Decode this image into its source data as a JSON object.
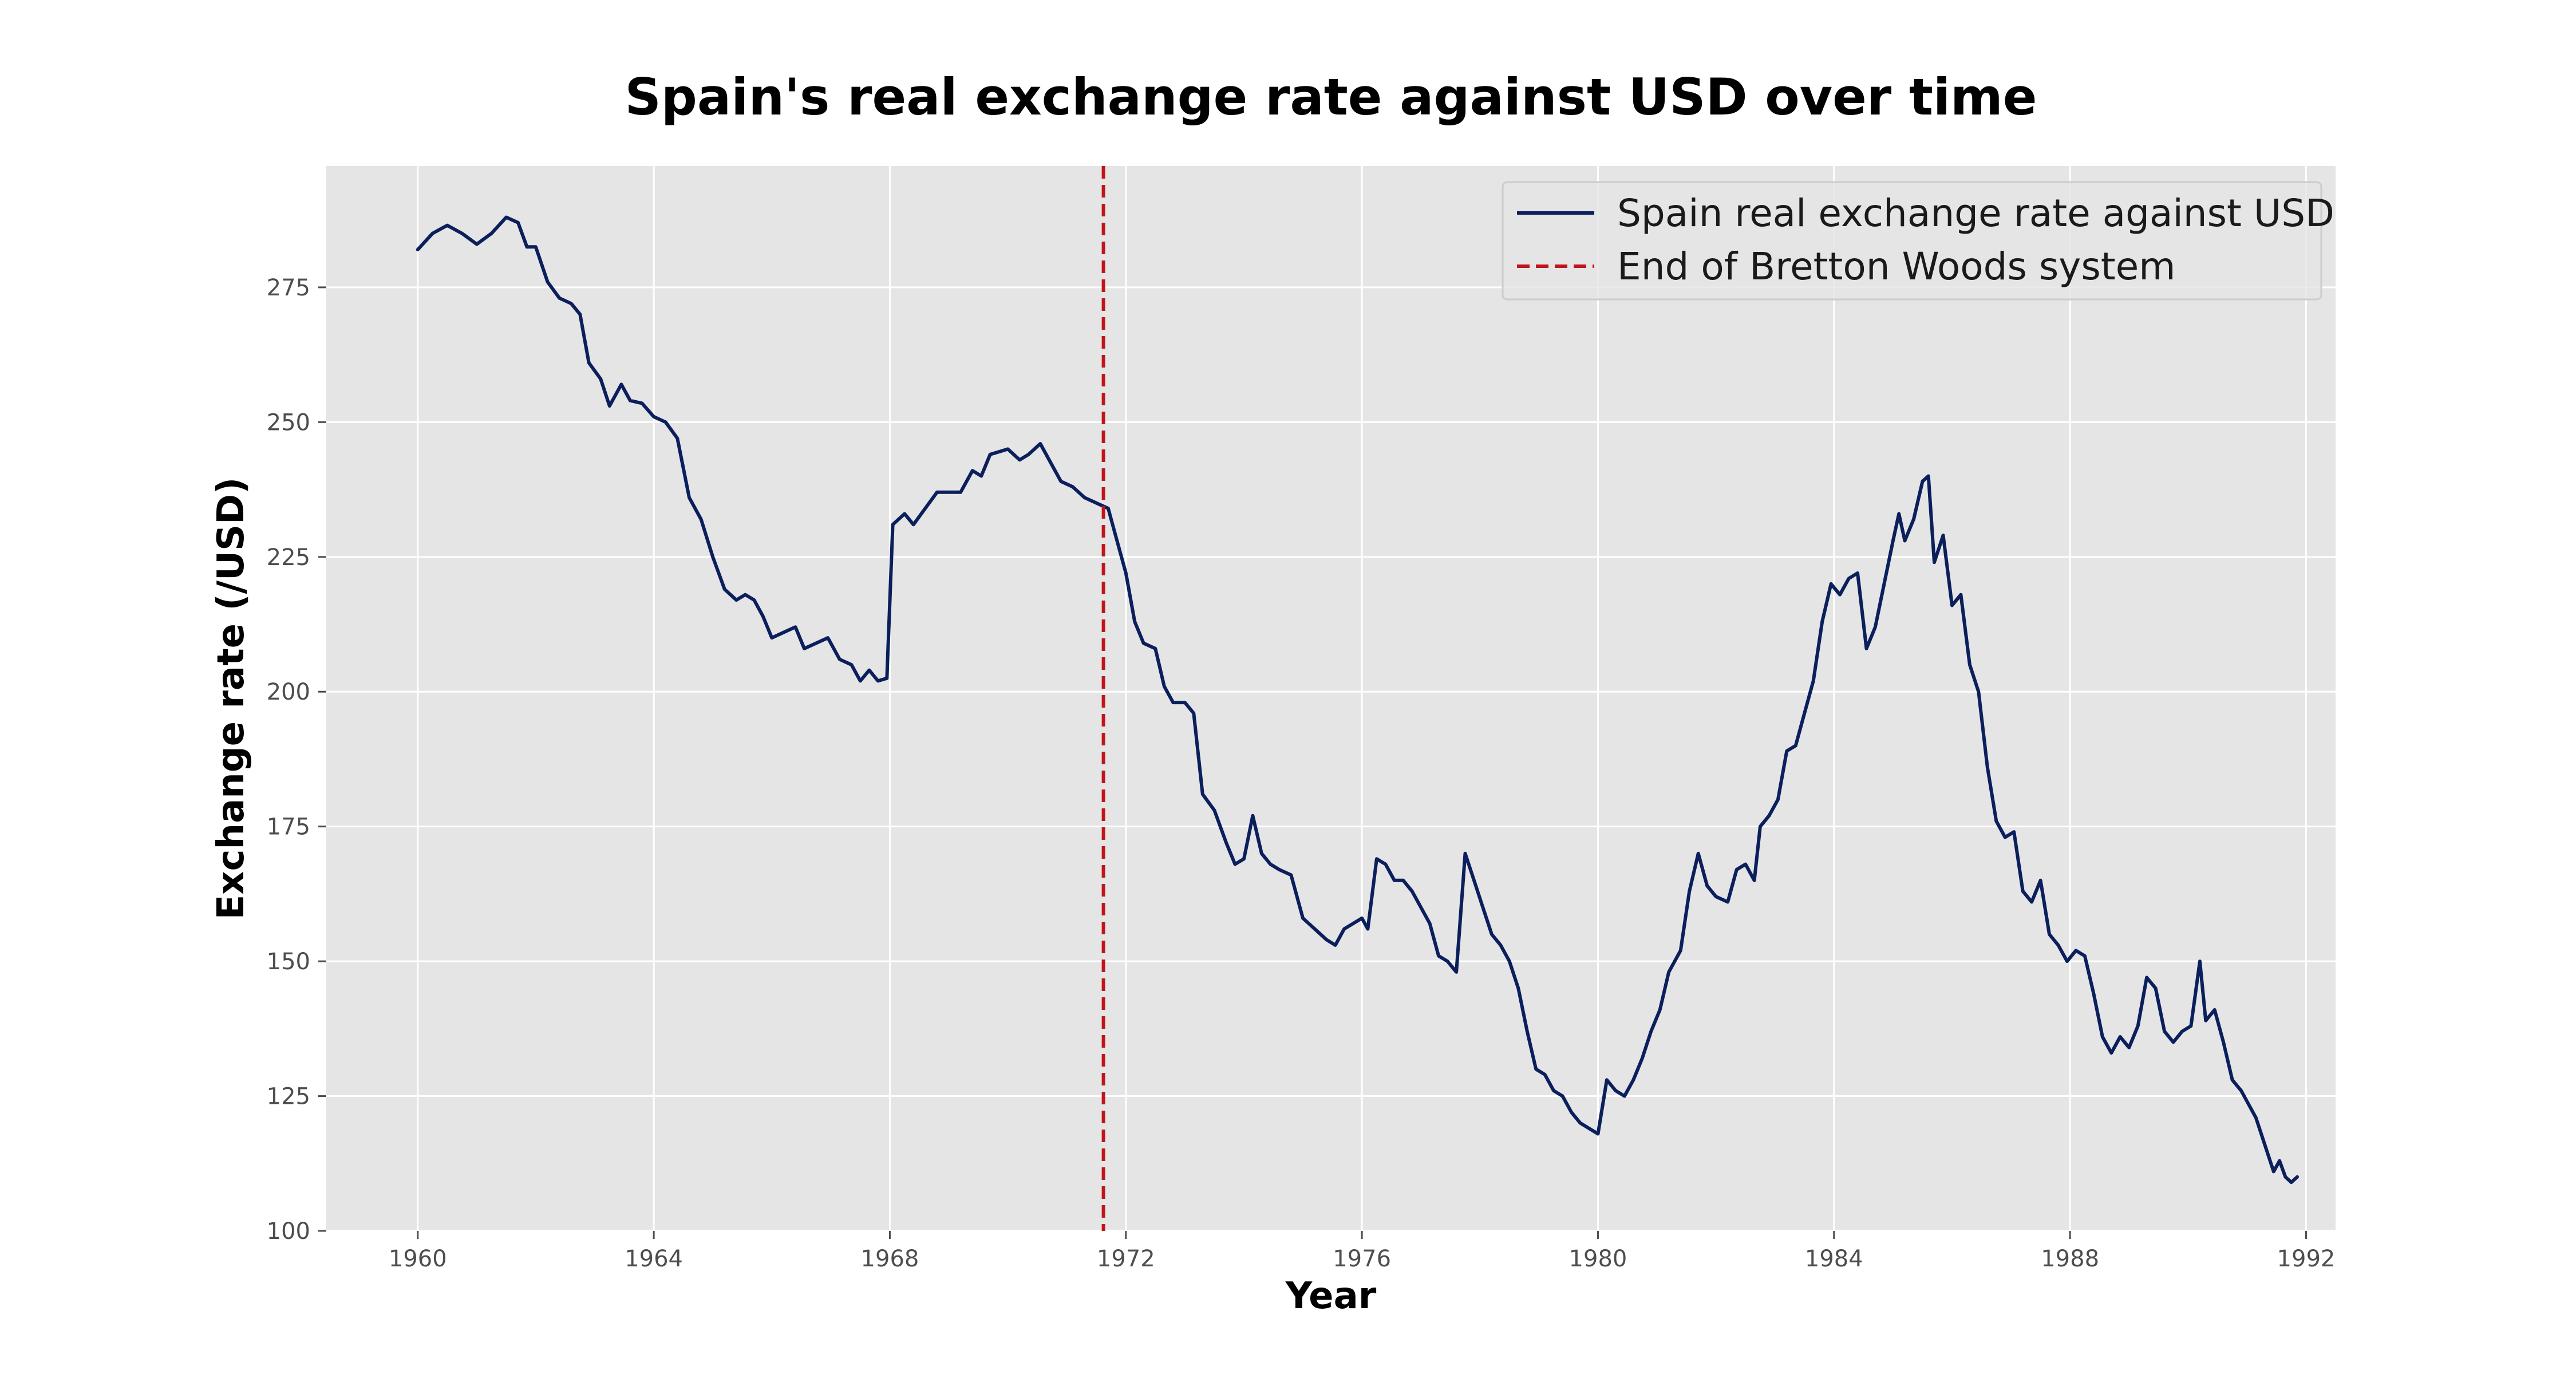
{
  "chart_data": {
    "type": "line",
    "title": "Spain's real exchange rate against USD over time",
    "xlabel": "Year",
    "ylabel": "Exchange rate (/USD)",
    "xlim": [
      1958.45,
      1992.5
    ],
    "ylim": [
      100,
      297.5
    ],
    "x_ticks": [
      1960,
      1964,
      1968,
      1972,
      1976,
      1980,
      1984,
      1988,
      1992
    ],
    "y_ticks": [
      100,
      125,
      150,
      175,
      200,
      225,
      250,
      275
    ],
    "grid": true,
    "legend_position": "top-right",
    "colors": {
      "plot_background": "#e5e5e5",
      "grid": "#ffffff",
      "series_line": "#0b1f5c",
      "reference_line": "#c0161b"
    },
    "series": [
      {
        "name": "Spain real exchange rate against USD",
        "style": "solid",
        "points": [
          [
            1960.0,
            282
          ],
          [
            1960.25,
            285
          ],
          [
            1960.5,
            286.5
          ],
          [
            1960.75,
            285
          ],
          [
            1961.0,
            283
          ],
          [
            1961.25,
            285
          ],
          [
            1961.5,
            288
          ],
          [
            1961.7,
            287
          ],
          [
            1961.85,
            282.5
          ],
          [
            1962.0,
            282.5
          ],
          [
            1962.2,
            276
          ],
          [
            1962.4,
            273
          ],
          [
            1962.6,
            272
          ],
          [
            1962.75,
            270
          ],
          [
            1962.9,
            261
          ],
          [
            1963.1,
            258
          ],
          [
            1963.25,
            253
          ],
          [
            1963.45,
            257
          ],
          [
            1963.6,
            254
          ],
          [
            1963.8,
            253.5
          ],
          [
            1964.0,
            251
          ],
          [
            1964.2,
            250
          ],
          [
            1964.4,
            247
          ],
          [
            1964.6,
            236
          ],
          [
            1964.8,
            232
          ],
          [
            1965.0,
            225
          ],
          [
            1965.2,
            219
          ],
          [
            1965.4,
            217
          ],
          [
            1965.55,
            218
          ],
          [
            1965.7,
            217
          ],
          [
            1965.85,
            214
          ],
          [
            1966.0,
            210
          ],
          [
            1966.2,
            211
          ],
          [
            1966.4,
            212
          ],
          [
            1966.55,
            208
          ],
          [
            1966.75,
            209
          ],
          [
            1966.95,
            210
          ],
          [
            1967.15,
            206
          ],
          [
            1967.35,
            205
          ],
          [
            1967.5,
            202
          ],
          [
            1967.65,
            204
          ],
          [
            1967.8,
            202
          ],
          [
            1967.95,
            202.5
          ],
          [
            1968.05,
            231
          ],
          [
            1968.25,
            233
          ],
          [
            1968.4,
            231
          ],
          [
            1968.6,
            234
          ],
          [
            1968.8,
            237
          ],
          [
            1969.0,
            237
          ],
          [
            1969.2,
            237
          ],
          [
            1969.4,
            241
          ],
          [
            1969.55,
            240
          ],
          [
            1969.7,
            244
          ],
          [
            1969.85,
            244.5
          ],
          [
            1970.0,
            245
          ],
          [
            1970.2,
            243
          ],
          [
            1970.35,
            244
          ],
          [
            1970.55,
            246
          ],
          [
            1970.75,
            242
          ],
          [
            1970.9,
            239
          ],
          [
            1971.1,
            238
          ],
          [
            1971.3,
            236
          ],
          [
            1971.5,
            235
          ],
          [
            1971.7,
            234
          ],
          [
            1971.85,
            228
          ],
          [
            1972.0,
            222
          ],
          [
            1972.15,
            213
          ],
          [
            1972.3,
            209
          ],
          [
            1972.5,
            208
          ],
          [
            1972.65,
            201
          ],
          [
            1972.8,
            198
          ],
          [
            1973.0,
            198
          ],
          [
            1973.15,
            196
          ],
          [
            1973.3,
            181
          ],
          [
            1973.5,
            178
          ],
          [
            1973.7,
            172
          ],
          [
            1973.85,
            168
          ],
          [
            1974.0,
            169
          ],
          [
            1974.15,
            177
          ],
          [
            1974.3,
            170
          ],
          [
            1974.45,
            168
          ],
          [
            1974.6,
            167
          ],
          [
            1974.8,
            166
          ],
          [
            1975.0,
            158
          ],
          [
            1975.2,
            156
          ],
          [
            1975.4,
            154
          ],
          [
            1975.55,
            153
          ],
          [
            1975.7,
            156
          ],
          [
            1975.85,
            157
          ],
          [
            1976.0,
            158
          ],
          [
            1976.1,
            156
          ],
          [
            1976.25,
            169
          ],
          [
            1976.4,
            168
          ],
          [
            1976.55,
            165
          ],
          [
            1976.7,
            165
          ],
          [
            1976.85,
            163
          ],
          [
            1977.0,
            160
          ],
          [
            1977.15,
            157
          ],
          [
            1977.3,
            151
          ],
          [
            1977.45,
            150
          ],
          [
            1977.6,
            148
          ],
          [
            1977.75,
            170
          ],
          [
            1977.9,
            165
          ],
          [
            1978.05,
            160
          ],
          [
            1978.2,
            155
          ],
          [
            1978.35,
            153
          ],
          [
            1978.5,
            150
          ],
          [
            1978.65,
            145
          ],
          [
            1978.8,
            137
          ],
          [
            1978.95,
            130
          ],
          [
            1979.1,
            129
          ],
          [
            1979.25,
            126
          ],
          [
            1979.4,
            125
          ],
          [
            1979.55,
            122
          ],
          [
            1979.7,
            120
          ],
          [
            1979.85,
            119
          ],
          [
            1980.0,
            118
          ],
          [
            1980.15,
            128
          ],
          [
            1980.3,
            126
          ],
          [
            1980.45,
            125
          ],
          [
            1980.6,
            128
          ],
          [
            1980.75,
            132
          ],
          [
            1980.9,
            137
          ],
          [
            1981.05,
            141
          ],
          [
            1981.2,
            148
          ],
          [
            1981.4,
            152
          ],
          [
            1981.55,
            163
          ],
          [
            1981.7,
            170
          ],
          [
            1981.85,
            164
          ],
          [
            1982.0,
            162
          ],
          [
            1982.2,
            161
          ],
          [
            1982.35,
            167
          ],
          [
            1982.5,
            168
          ],
          [
            1982.65,
            165
          ],
          [
            1982.75,
            175
          ],
          [
            1982.9,
            177
          ],
          [
            1983.05,
            180
          ],
          [
            1983.2,
            189
          ],
          [
            1983.35,
            190
          ],
          [
            1983.5,
            196
          ],
          [
            1983.65,
            202
          ],
          [
            1983.8,
            213
          ],
          [
            1983.95,
            220
          ],
          [
            1984.1,
            218
          ],
          [
            1984.25,
            221
          ],
          [
            1984.4,
            222
          ],
          [
            1984.55,
            208
          ],
          [
            1984.7,
            212
          ],
          [
            1984.85,
            220
          ],
          [
            1985.0,
            228
          ],
          [
            1985.1,
            233
          ],
          [
            1985.2,
            228
          ],
          [
            1985.35,
            232
          ],
          [
            1985.5,
            239
          ],
          [
            1985.6,
            240
          ],
          [
            1985.7,
            224
          ],
          [
            1985.85,
            229
          ],
          [
            1986.0,
            216
          ],
          [
            1986.15,
            218
          ],
          [
            1986.3,
            205
          ],
          [
            1986.45,
            200
          ],
          [
            1986.6,
            186
          ],
          [
            1986.75,
            176
          ],
          [
            1986.9,
            173
          ],
          [
            1987.05,
            174
          ],
          [
            1987.2,
            163
          ],
          [
            1987.35,
            161
          ],
          [
            1987.5,
            165
          ],
          [
            1987.65,
            155
          ],
          [
            1987.8,
            153
          ],
          [
            1987.95,
            150
          ],
          [
            1988.1,
            152
          ],
          [
            1988.25,
            151
          ],
          [
            1988.4,
            144
          ],
          [
            1988.55,
            136
          ],
          [
            1988.7,
            133
          ],
          [
            1988.85,
            136
          ],
          [
            1989.0,
            134
          ],
          [
            1989.15,
            138
          ],
          [
            1989.3,
            147
          ],
          [
            1989.45,
            145
          ],
          [
            1989.6,
            137
          ],
          [
            1989.75,
            135
          ],
          [
            1989.9,
            137
          ],
          [
            1990.05,
            138
          ],
          [
            1990.2,
            150
          ],
          [
            1990.3,
            139
          ],
          [
            1990.45,
            141
          ],
          [
            1990.6,
            135
          ],
          [
            1990.75,
            128
          ],
          [
            1990.9,
            126
          ],
          [
            1991.0,
            124
          ],
          [
            1991.15,
            121
          ],
          [
            1991.3,
            116
          ],
          [
            1991.45,
            111
          ],
          [
            1991.55,
            113
          ],
          [
            1991.65,
            110
          ],
          [
            1991.75,
            109
          ],
          [
            1991.85,
            110
          ]
        ]
      },
      {
        "name": "End of Bretton Woods system",
        "style": "dashed",
        "x": 1971.62
      }
    ]
  }
}
